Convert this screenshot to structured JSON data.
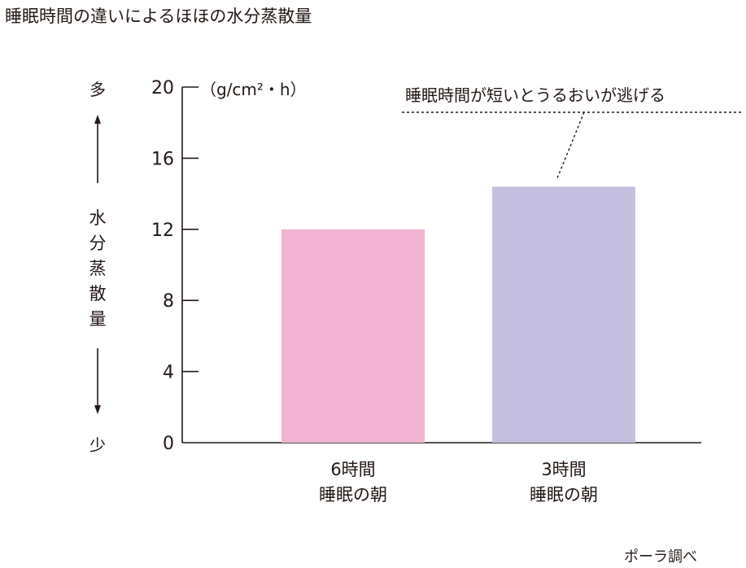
{
  "chart_data": {
    "type": "bar",
    "title": "睡眠時間の違いによるほほの水分蒸散量",
    "unit": "（g/cm²・h）",
    "categories": [
      {
        "line1": "6時間",
        "line2": "睡眠の朝"
      },
      {
        "line1": "3時間",
        "line2": "睡眠の朝"
      }
    ],
    "series": [
      {
        "values": [
          12.0,
          14.4
        ],
        "colors": [
          "#f2b3d3",
          "#c6c0e0"
        ]
      }
    ],
    "ylim": [
      0,
      20
    ],
    "yticks": [
      0,
      4,
      8,
      12,
      16,
      20
    ],
    "ylabel": {
      "text": "水分蒸散量",
      "high": "多",
      "low": "少"
    },
    "annotation": {
      "text": "睡眠時間が短いとうるおいが逃げる",
      "target_category": 1
    },
    "source": "ポーラ調べ",
    "grid": false,
    "legend": "none"
  }
}
